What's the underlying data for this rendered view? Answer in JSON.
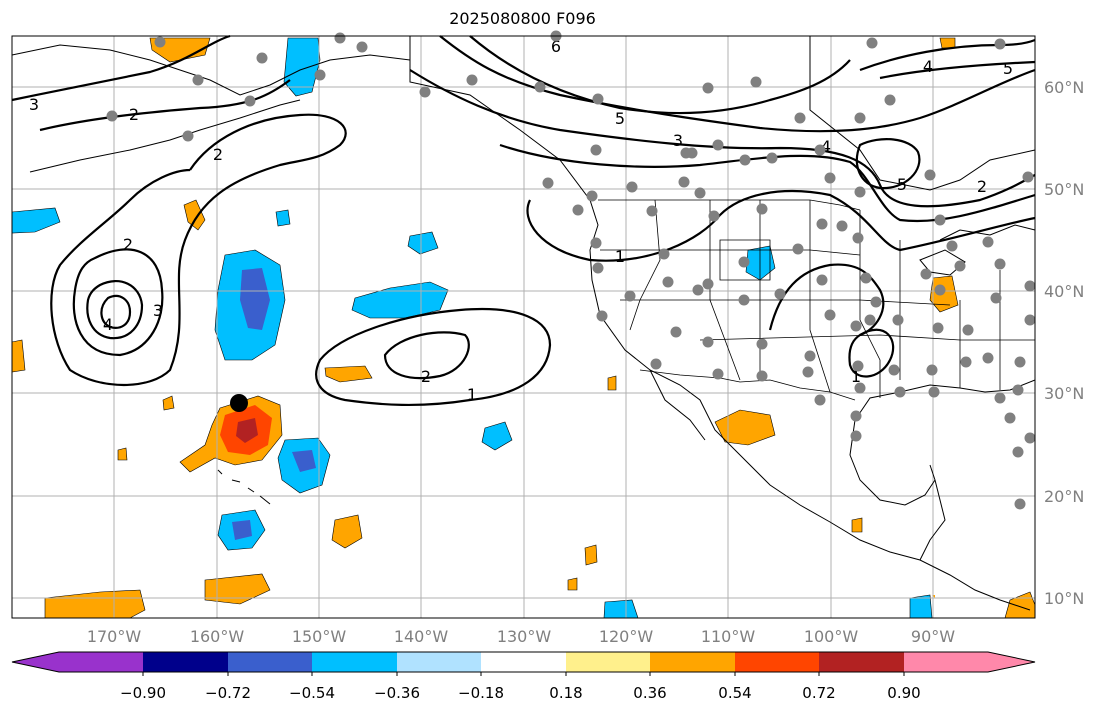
{
  "title": "2025080800 F096",
  "map": {
    "lon_range": [
      -180,
      -80
    ],
    "lat_range": [
      8,
      65
    ],
    "grid": true
  },
  "lat_labels": [
    "60°N",
    "50°N",
    "40°N",
    "30°N",
    "20°N",
    "10°N"
  ],
  "lon_labels": [
    "170°W",
    "160°W",
    "150°W",
    "140°W",
    "130°W",
    "120°W",
    "110°W",
    "100°W",
    "90°W"
  ],
  "colorbar": {
    "tick_labels": [
      "−0.90",
      "−0.72",
      "−0.54",
      "−0.36",
      "−0.18",
      "0.18",
      "0.36",
      "0.54",
      "0.72",
      "0.90"
    ],
    "colors": [
      "#9932cc",
      "#00008b",
      "#3a5fcd",
      "#00bfff",
      "#b0e2ff",
      "#ffffff",
      "#fff08c",
      "#ffa500",
      "#ff4500",
      "#b22222",
      "#ff88aa"
    ]
  },
  "contour_labels": [
    "3",
    "2",
    "2",
    "2",
    "4",
    "3",
    "6",
    "5",
    "3",
    "4",
    "1",
    "2",
    "1",
    "5",
    "2",
    "5",
    "4",
    "1"
  ],
  "colors": {
    "station_dot": "#808080",
    "marker": "#000000",
    "grid": "#b0b0b0"
  }
}
